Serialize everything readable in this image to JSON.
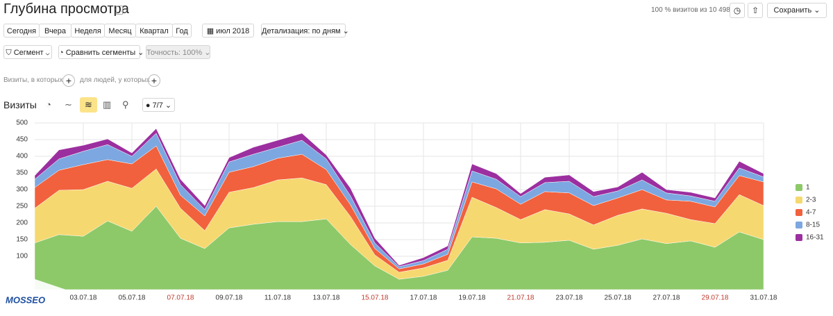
{
  "header": {
    "title": "Глубина просмотра",
    "visits_info": "100 % визитов из 10 498",
    "save": "Сохранить"
  },
  "period": {
    "buttons": [
      "Сегодня",
      "Вчера",
      "Неделя",
      "Месяц",
      "Квартал",
      "Год"
    ],
    "month": "июл 2018",
    "detail": "Детализация: по дням"
  },
  "segment": {
    "segment": "Сегмент",
    "compare": "Сравнить сегменты",
    "accuracy": "Точность: 100%"
  },
  "filters": {
    "visits": "Визиты, в которых",
    "people": "для людей, у которых"
  },
  "report": {
    "label": "Визиты",
    "counter": "7/7"
  },
  "watermark": "MOSSEO",
  "chart_data": {
    "type": "stacked_area",
    "categories": [
      null,
      null,
      "03.07.18",
      null,
      "05.07.18",
      null,
      "07.07.18",
      null,
      "09.07.18",
      null,
      "11.07.18",
      null,
      "13.07.18",
      null,
      "15.07.18",
      null,
      "17.07.18",
      null,
      "19.07.18",
      null,
      "21.07.18",
      null,
      "23.07.18",
      null,
      "25.07.18",
      null,
      "27.07.18",
      null,
      "29.07.18",
      null,
      "31.07.18"
    ],
    "highlighted_categories": [
      6,
      14,
      20,
      28
    ],
    "highlight_color": "#c0392b",
    "series": [
      {
        "name": "1",
        "color": "#8dc968",
        "values": [
          140,
          165,
          160,
          206,
          175,
          250,
          154,
          123,
          185,
          196,
          204,
          204,
          212,
          135,
          71,
          31,
          40,
          58,
          158,
          154,
          140,
          142,
          148,
          121,
          133,
          152,
          138,
          146,
          127,
          173,
          150
        ]
      },
      {
        "name": "2-3",
        "color": "#f6d870",
        "values": [
          104,
          133,
          140,
          119,
          129,
          112,
          90,
          54,
          107,
          110,
          125,
          131,
          103,
          84,
          33,
          21,
          25,
          30,
          119,
          92,
          70,
          98,
          79,
          73,
          90,
          90,
          91,
          64,
          71,
          112,
          102
        ]
      },
      {
        "name": "4-7",
        "color": "#f1613d",
        "values": [
          62,
          60,
          75,
          65,
          73,
          69,
          39,
          44,
          60,
          63,
          65,
          71,
          45,
          35,
          19,
          10,
          12,
          18,
          46,
          56,
          46,
          54,
          63,
          58,
          52,
          58,
          40,
          55,
          50,
          57,
          71
        ]
      },
      {
        "name": "8-15",
        "color": "#7da7e0",
        "values": [
          25,
          34,
          40,
          45,
          23,
          38,
          32,
          19,
          31,
          37,
          33,
          42,
          32,
          27,
          17,
          7,
          10,
          15,
          33,
          29,
          23,
          27,
          35,
          27,
          21,
          29,
          21,
          16,
          17,
          23,
          15
        ]
      },
      {
        "name": "16-31",
        "color": "#9c2f9f",
        "values": [
          11,
          27,
          18,
          17,
          10,
          14,
          16,
          12,
          13,
          21,
          21,
          21,
          12,
          23,
          14,
          4,
          9,
          10,
          21,
          17,
          9,
          16,
          19,
          15,
          12,
          23,
          10,
          11,
          10,
          20,
          10
        ]
      }
    ],
    "ylim": [
      0,
      500
    ],
    "yticks": [
      100,
      150,
      200,
      250,
      300,
      350,
      400,
      450,
      500
    ],
    "grid": true,
    "legend": "right"
  }
}
